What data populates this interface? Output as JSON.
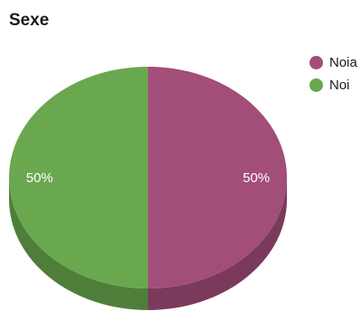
{
  "chart_data": {
    "type": "pie",
    "title": "Sexe",
    "slices": [
      {
        "label": "Noia",
        "value": 50,
        "display": "50%",
        "color": "#a34d79",
        "shade": "#7b3a5b"
      },
      {
        "label": "Noi",
        "value": 50,
        "display": "50%",
        "color": "#6aa84f",
        "shade": "#4f7e3b"
      }
    ],
    "legend_position": "top-right",
    "three_d": true
  }
}
